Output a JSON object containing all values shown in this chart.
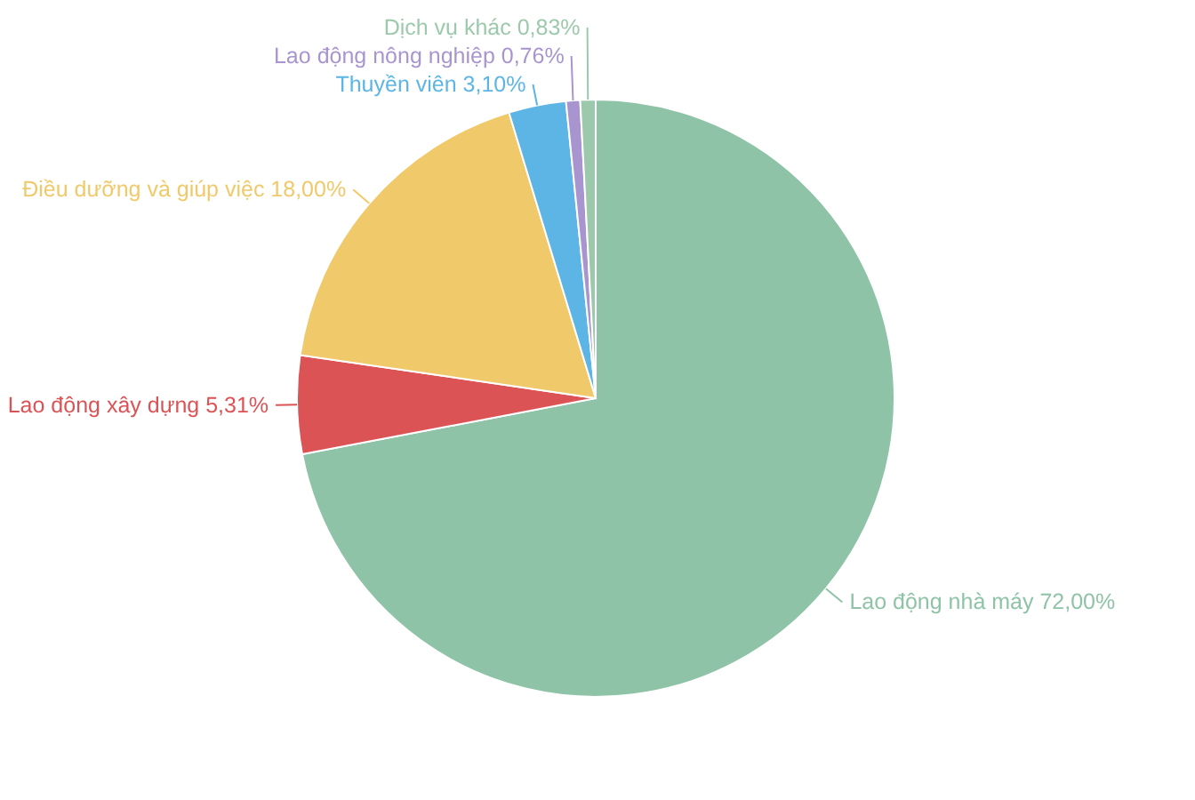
{
  "chart_data": {
    "type": "pie",
    "categories": [
      "Lao động nhà máy",
      "Lao động xây dựng",
      "Điều dưỡng và giúp việc",
      "Thuyền viên",
      "Lao động nông nghiệp",
      "Dịch vụ khác"
    ],
    "values": [
      72.0,
      5.31,
      18.0,
      3.1,
      0.76,
      0.83
    ],
    "value_labels": [
      "72,00%",
      "5,31%",
      "18,00%",
      "3,10%",
      "0,76%",
      "0,83%"
    ],
    "colors": [
      "#8fc3a7",
      "#dc5356",
      "#f0c96a",
      "#5db5e5",
      "#a895cf",
      "#9cc9ab"
    ]
  }
}
